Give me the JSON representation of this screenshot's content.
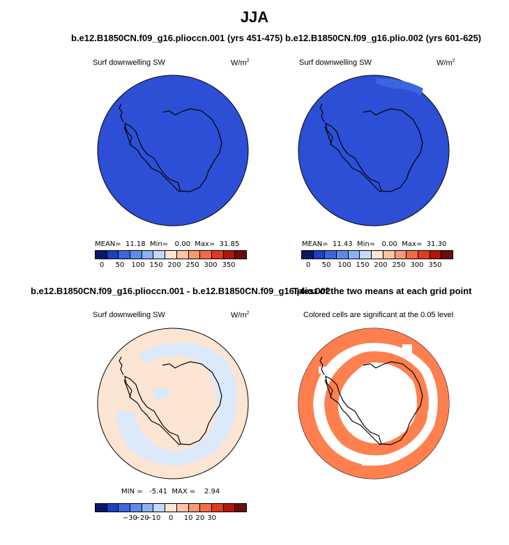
{
  "figure": {
    "title": "JJA"
  },
  "panels": [
    {
      "title": "b.e12.B1850CN.f09_g16.plioccn.001 (yrs 451-475)",
      "subtitle": "Surf downwelling SW",
      "units": "W/m",
      "units_exp": "2",
      "stats": "MEAN=  11.18  Min=   0.00  Max=  31.85",
      "fill": "#2d4fd6"
    },
    {
      "title": "b.e12.B1850CN.f09_g16.plio.002 (yrs 601-625)",
      "subtitle": "Surf downwelling SW",
      "units": "W/m",
      "units_exp": "2",
      "stats": "MEAN=  11.43  Min=   0.00  Max=  31.30",
      "fill": "#2d4fd6"
    },
    {
      "title": "b.e12.B1850CN.f09_g16.plioccn.001 - b.e12.B1850CN.f09_g16.plio.002",
      "subtitle": "Surf downwelling SW",
      "units": "W/m",
      "units_exp": "2",
      "stats": "MIN =   -5.41  MAX =    2.94",
      "fill": "#fde5d3"
    },
    {
      "title": "T-test of the two means at each grid point",
      "subtitle": "Colored cells are significant at the 0.05 level",
      "fill": "#ff7f4f"
    }
  ],
  "colorbar_abs": {
    "colors": [
      "#08176b",
      "#1d3fc4",
      "#3a66e0",
      "#5d8aeb",
      "#8cb2f3",
      "#c1daf9",
      "#fde5d3",
      "#fcc4a6",
      "#f99872",
      "#f36a45",
      "#e03a1f",
      "#b3150e",
      "#6e0b0b"
    ],
    "labels": [
      "0",
      "50",
      "100",
      "150",
      "200",
      "250",
      "300",
      "350"
    ]
  },
  "colorbar_diff": {
    "colors": [
      "#08176b",
      "#1d3fc4",
      "#3a66e0",
      "#5d8aeb",
      "#8cb2f3",
      "#c1daf9",
      "#fde5d3",
      "#fcc4a6",
      "#f99872",
      "#f36a45",
      "#e03a1f",
      "#b3150e",
      "#6e0b0b"
    ],
    "labels": [
      "−30",
      "−20",
      "−10",
      "0",
      "10",
      "20",
      "30"
    ]
  }
}
